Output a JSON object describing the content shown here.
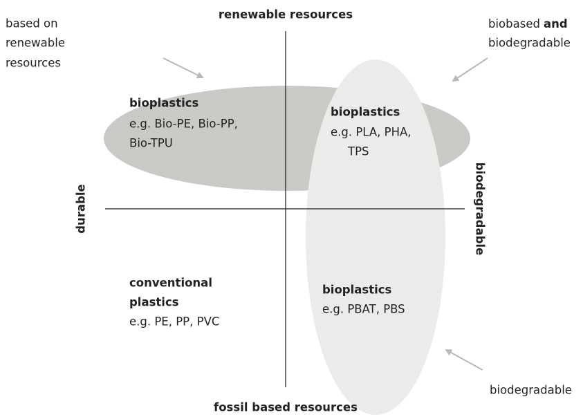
{
  "axes": {
    "top": "renewable resources",
    "bottom": "fossil based resources",
    "left": "durable",
    "right": "biodegradable"
  },
  "annotations": {
    "renewable": [
      "based on",
      "renewable",
      "resources"
    ],
    "biobased": {
      "text": "biobased",
      "bold": "and",
      "line2": "biodegradable"
    },
    "biodegradable": "biodegradable"
  },
  "quadrants": {
    "top_left": {
      "title": "bioplastics",
      "lines": [
        "e.g. Bio-PE, Bio-PP,",
        "Bio-TPU"
      ]
    },
    "top_right": {
      "title": "bioplastics",
      "lines": [
        "e.g. PLA, PHA,",
        "TPS"
      ]
    },
    "bottom_left": {
      "title": [
        "conventional",
        "plastics"
      ],
      "lines": [
        "e.g. PE, PP, PVC"
      ]
    },
    "bottom_right": {
      "title": "bioplastics",
      "lines": [
        "e.g. PBAT, PBS"
      ]
    }
  }
}
